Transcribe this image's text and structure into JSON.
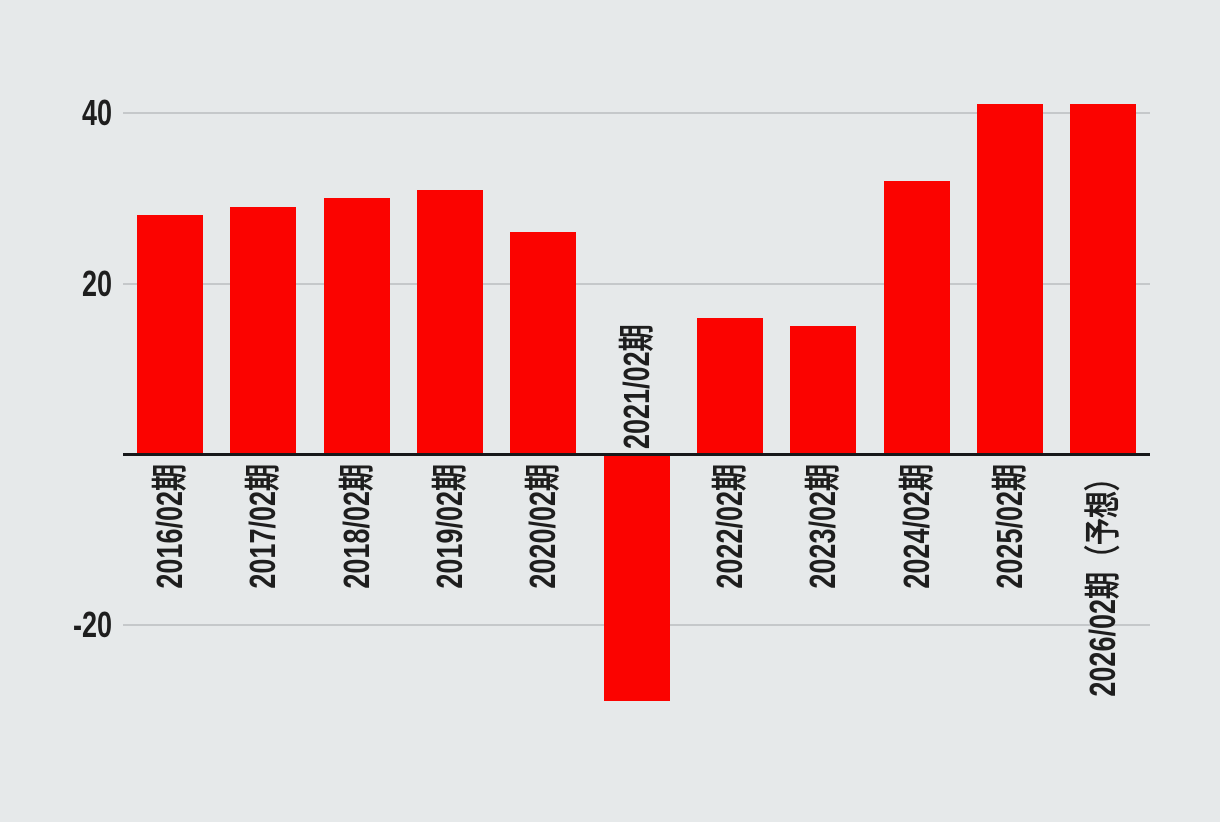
{
  "chart_data": {
    "type": "bar",
    "categories": [
      "2016/02期",
      "2017/02期",
      "2018/02期",
      "2019/02期",
      "2020/02期",
      "2021/02期",
      "2022/02期",
      "2023/02期",
      "2024/02期",
      "2025/02期",
      "2026/02期（予想）"
    ],
    "values": [
      28,
      29,
      30,
      31,
      26,
      -29,
      16,
      15,
      32,
      41,
      41
    ],
    "title": "",
    "xlabel": "",
    "ylabel": "",
    "ylim": [
      -32,
      44
    ],
    "yticks": [
      40,
      20,
      -20
    ],
    "ytick_labels": [
      "40",
      "20",
      "-20"
    ],
    "grid": true,
    "legend": "none",
    "bar_color": "#fb0300",
    "background_color": "#e6e9ea",
    "gridline_color": "#c5c8ca",
    "axis_line_color": "#17181a",
    "tick_label_color": "#1e1e1e"
  }
}
